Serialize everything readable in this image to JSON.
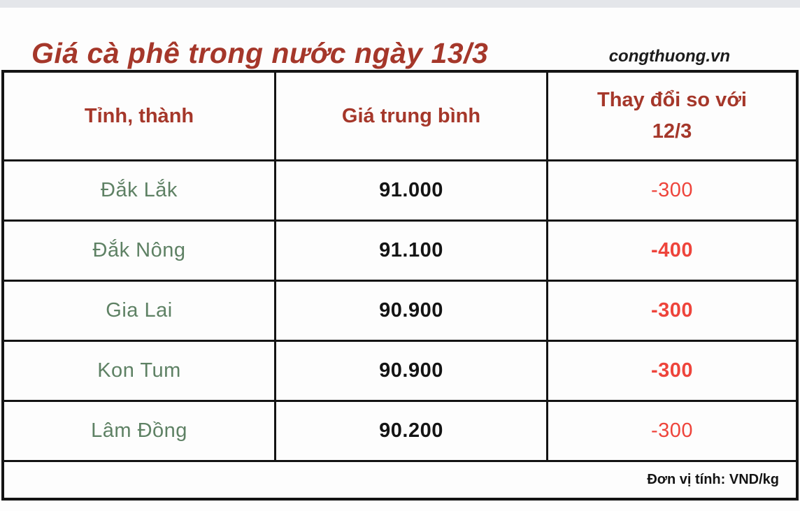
{
  "page": {
    "title": "Giá cà phê trong nước ngày 13/3",
    "source": "congthuong.vn"
  },
  "table": {
    "headers": {
      "province": "Tỉnh, thành",
      "avg_price": "Giá trung bình",
      "change_line1": "Thay đổi so với",
      "change_line2": "12/3"
    },
    "rows": [
      {
        "province": "Đắk Lắk",
        "avg_price": "91.000",
        "change": "-300",
        "change_bold": false
      },
      {
        "province": "Đắk Nông",
        "avg_price": "91.100",
        "change": "-400",
        "change_bold": true
      },
      {
        "province": "Gia Lai",
        "avg_price": "90.900",
        "change": "-300",
        "change_bold": true
      },
      {
        "province": "Kon Tum",
        "avg_price": "90.900",
        "change": "-300",
        "change_bold": true
      },
      {
        "province": "Lâm Đồng",
        "avg_price": "90.200",
        "change": "-300",
        "change_bold": false
      }
    ],
    "footer_note": "Đơn vị tính: VND/kg"
  },
  "colors": {
    "accent_red": "#a5372a",
    "province_green": "#5e8164",
    "change_red": "#ee443b",
    "text_black": "#141414",
    "border_black": "#141414",
    "top_strip_gray": "#e4e6ea"
  }
}
